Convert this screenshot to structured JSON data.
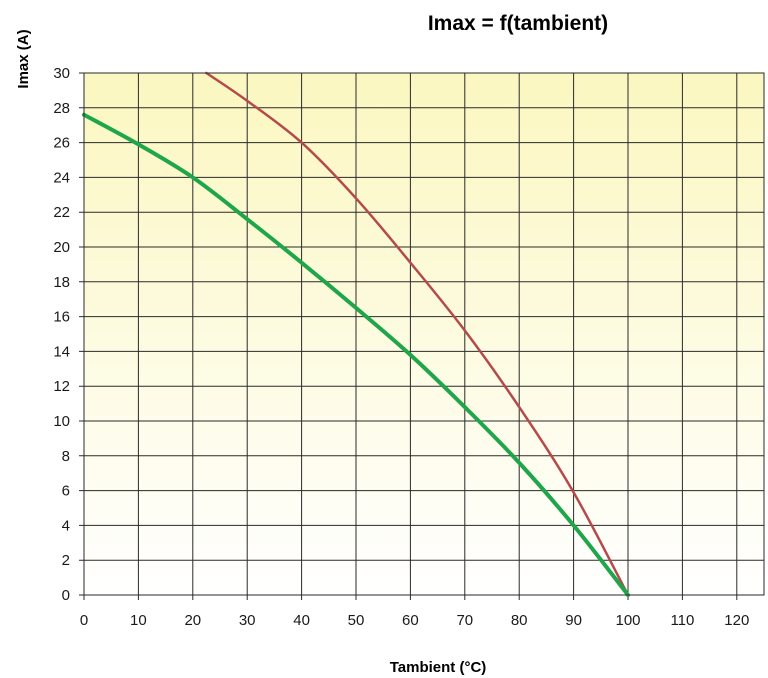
{
  "chart_data": {
    "type": "line",
    "title": "Imax = f(tambient)",
    "xlabel": "Tambient (°C)",
    "ylabel": "Imax (A)",
    "xlim": [
      0,
      125
    ],
    "ylim": [
      0,
      30
    ],
    "x_ticks": [
      "0",
      "10",
      "20",
      "30",
      "40",
      "50",
      "60",
      "70",
      "80",
      "90",
      "100",
      "110",
      "120"
    ],
    "y_ticks": [
      "0",
      "2",
      "4",
      "6",
      "8",
      "10",
      "12",
      "14",
      "16",
      "18",
      "20",
      "22",
      "24",
      "26",
      "28",
      "30"
    ],
    "grid": true,
    "legend": "none",
    "colors": {
      "background_top": "#fbf7c0",
      "background_bottom": "#ffffff",
      "grid": "#2a2a2a",
      "green_series": "#1fa64a",
      "red_series": "#b54a4a"
    },
    "series": [
      {
        "color": "#b54a4a",
        "points": [
          [
            22.5,
            30
          ],
          [
            30,
            28.4
          ],
          [
            40,
            26
          ],
          [
            50,
            22.8
          ],
          [
            60,
            19.1
          ],
          [
            70,
            15.2
          ],
          [
            80,
            10.8
          ],
          [
            90,
            5.9
          ],
          [
            100,
            0
          ]
        ]
      },
      {
        "color": "#1fa64a",
        "points": [
          [
            0,
            27.6
          ],
          [
            10,
            25.9
          ],
          [
            20,
            24
          ],
          [
            30,
            21.6
          ],
          [
            40,
            19.1
          ],
          [
            50,
            16.5
          ],
          [
            60,
            13.8
          ],
          [
            70,
            10.8
          ],
          [
            80,
            7.6
          ],
          [
            90,
            4
          ],
          [
            100,
            0
          ]
        ]
      }
    ]
  }
}
